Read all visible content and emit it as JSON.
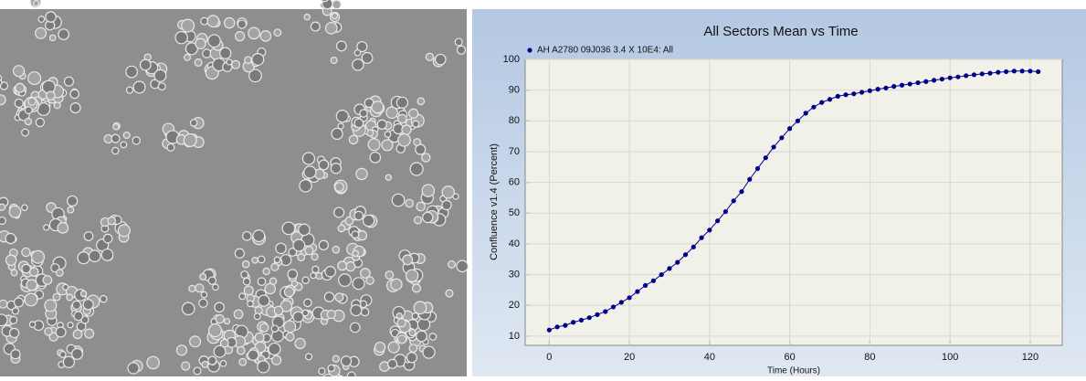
{
  "chart_data": {
    "type": "line",
    "title": "All Sectors Mean vs Time",
    "x_label": "Time (Hours)",
    "y_label": "Confluence v1.4 (Percent)",
    "x": [
      0,
      2,
      4,
      6,
      8,
      10,
      12,
      14,
      16,
      18,
      20,
      22,
      24,
      26,
      28,
      30,
      32,
      34,
      36,
      38,
      40,
      42,
      44,
      46,
      48,
      50,
      52,
      54,
      56,
      58,
      60,
      62,
      64,
      66,
      68,
      70,
      72,
      74,
      76,
      78,
      80,
      82,
      84,
      86,
      88,
      90,
      92,
      94,
      96,
      98,
      100,
      102,
      104,
      106,
      108,
      110,
      112,
      114,
      116,
      118,
      120,
      122
    ],
    "series": [
      {
        "name": "AH A2780 09J036 3.4 X 10E4: All",
        "color": "#00008b",
        "values": [
          12,
          13,
          13.5,
          14.5,
          15.2,
          16,
          17,
          18,
          19.5,
          21,
          22.5,
          24.5,
          26.5,
          28,
          30,
          32,
          34,
          36.5,
          39,
          42,
          44.5,
          47.5,
          50.5,
          54,
          57,
          61,
          64.5,
          68,
          71.5,
          74.5,
          77.5,
          80,
          82.5,
          84.5,
          86,
          87,
          88,
          88.5,
          88.8,
          89.3,
          89.8,
          90.3,
          90.7,
          91.2,
          91.6,
          92,
          92.4,
          92.8,
          93.2,
          93.6,
          94,
          94.3,
          94.7,
          95,
          95.3,
          95.5,
          95.8,
          96,
          96.2,
          96.2,
          96.2,
          96
        ]
      }
    ],
    "xlim": [
      -6,
      128
    ],
    "xticks": [
      0,
      20,
      40,
      60,
      80,
      100,
      120
    ],
    "ylim": [
      7,
      100
    ],
    "yticks": [
      10,
      20,
      30,
      40,
      50,
      60,
      70,
      80,
      90,
      100
    ],
    "grid": true,
    "legend": "top-left"
  }
}
